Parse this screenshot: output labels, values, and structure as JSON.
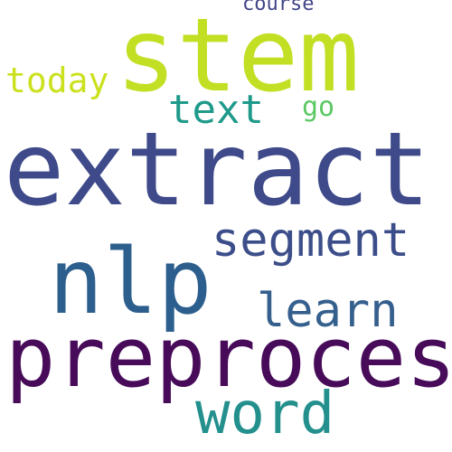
{
  "words": {
    "extract": "extract",
    "stem": "stem",
    "preprocess": "preprocess",
    "nlp": "nlp",
    "segment": "segment",
    "word": "word",
    "learn": "learn",
    "text": "text",
    "today": "today",
    "go": "go",
    "course": "course"
  },
  "colors": {
    "extract": "#3e4a89",
    "stem": "#c2df23",
    "preprocess": "#470b59",
    "nlp": "#2c5f8d",
    "segment": "#3c4e8a",
    "word": "#23908d",
    "learn": "#355f8d",
    "text": "#1f9a8a",
    "today": "#cbe11e",
    "go": "#5bc862",
    "course": "#414487",
    "background": "#ffffff"
  }
}
